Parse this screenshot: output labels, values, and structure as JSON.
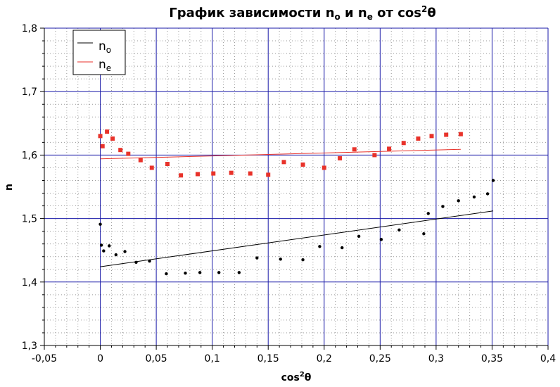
{
  "chart_data": {
    "type": "scatter",
    "title": "График зависимости nₒ и nₑ от cos²θ",
    "title_parts": {
      "a": "График зависимости n",
      "b": "o",
      "c": " и n",
      "d": "e",
      "e": " от cos",
      "f": "2",
      "g": "θ"
    },
    "xlabel": "cos²θ",
    "xlabel_parts": {
      "a": "cos",
      "b": "2",
      "c": "θ"
    },
    "ylabel": "n",
    "xlim": [
      -0.05,
      0.4
    ],
    "ylim": [
      1.3,
      1.8
    ],
    "x_ticks": [
      -0.05,
      0,
      0.05,
      0.1,
      0.15,
      0.2,
      0.25,
      0.3,
      0.35,
      0.4
    ],
    "x_tick_labels": [
      "-0,05",
      "0",
      "0,05",
      "0,1",
      "0,15",
      "0,2",
      "0,25",
      "0,3",
      "0,35",
      "0,4"
    ],
    "y_ticks": [
      1.3,
      1.4,
      1.5,
      1.6,
      1.7,
      1.8
    ],
    "y_tick_labels": [
      "1,3",
      "1,4",
      "1,5",
      "1,6",
      "1,7",
      "1,8"
    ],
    "grid": {
      "major": true,
      "minor": true,
      "major_color": "#1a1aa8",
      "minor_color": "#9a9a9a"
    },
    "legend": {
      "placement": "top-left",
      "entries": [
        {
          "base": "n",
          "sub": "o",
          "color": "#000000"
        },
        {
          "base": "n",
          "sub": "e",
          "color": "#e8322a"
        }
      ]
    },
    "series": [
      {
        "key": "no",
        "color": "#000000",
        "marker": "circle",
        "points": [
          [
            0.0,
            1.491
          ],
          [
            0.001,
            1.458
          ],
          [
            0.003,
            1.449
          ],
          [
            0.008,
            1.457
          ],
          [
            0.014,
            1.443
          ],
          [
            0.022,
            1.448
          ],
          [
            0.032,
            1.431
          ],
          [
            0.044,
            1.433
          ],
          [
            0.059,
            1.413
          ],
          [
            0.076,
            1.414
          ],
          [
            0.089,
            1.415
          ],
          [
            0.106,
            1.415
          ],
          [
            0.124,
            1.415
          ],
          [
            0.14,
            1.438
          ],
          [
            0.161,
            1.436
          ],
          [
            0.181,
            1.435
          ],
          [
            0.196,
            1.456
          ],
          [
            0.216,
            1.454
          ],
          [
            0.231,
            1.472
          ],
          [
            0.251,
            1.467
          ],
          [
            0.267,
            1.482
          ],
          [
            0.289,
            1.476
          ],
          [
            0.293,
            1.508
          ],
          [
            0.306,
            1.519
          ],
          [
            0.32,
            1.528
          ],
          [
            0.334,
            1.534
          ],
          [
            0.346,
            1.539
          ],
          [
            0.351,
            1.56
          ]
        ],
        "fit": [
          [
            0.0,
            1.424
          ],
          [
            0.351,
            1.512
          ]
        ]
      },
      {
        "key": "ne",
        "color": "#e8322a",
        "marker": "square",
        "points": [
          [
            0.0,
            1.63
          ],
          [
            0.002,
            1.614
          ],
          [
            0.006,
            1.637
          ],
          [
            0.011,
            1.626
          ],
          [
            0.018,
            1.608
          ],
          [
            0.025,
            1.602
          ],
          [
            0.036,
            1.592
          ],
          [
            0.046,
            1.58
          ],
          [
            0.06,
            1.586
          ],
          [
            0.072,
            1.568
          ],
          [
            0.087,
            1.57
          ],
          [
            0.101,
            1.571
          ],
          [
            0.117,
            1.572
          ],
          [
            0.134,
            1.571
          ],
          [
            0.15,
            1.569
          ],
          [
            0.164,
            1.589
          ],
          [
            0.181,
            1.585
          ],
          [
            0.2,
            1.58
          ],
          [
            0.214,
            1.595
          ],
          [
            0.227,
            1.609
          ],
          [
            0.245,
            1.6
          ],
          [
            0.258,
            1.61
          ],
          [
            0.271,
            1.619
          ],
          [
            0.284,
            1.626
          ],
          [
            0.296,
            1.63
          ],
          [
            0.309,
            1.632
          ],
          [
            0.322,
            1.633
          ]
        ],
        "fit": [
          [
            0.0,
            1.594
          ],
          [
            0.322,
            1.609
          ]
        ]
      }
    ]
  }
}
